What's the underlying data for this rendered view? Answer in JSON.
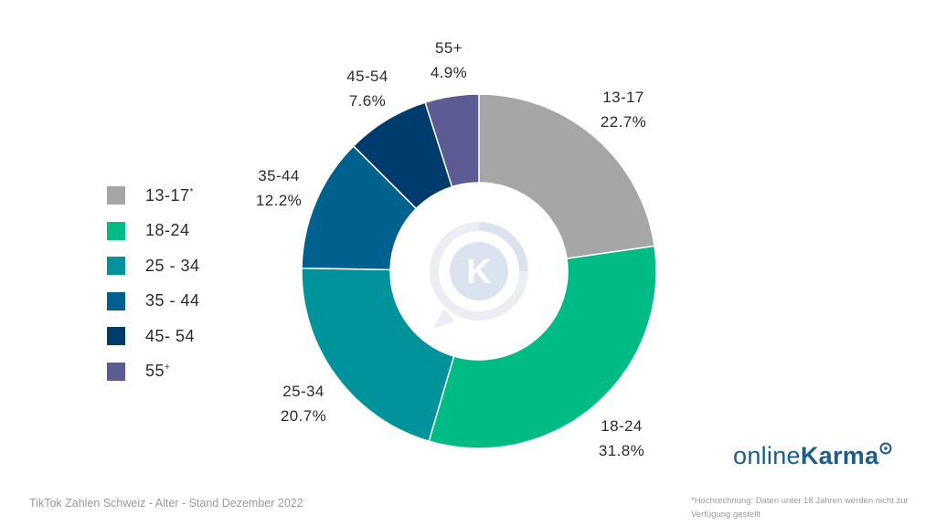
{
  "chart_data": {
    "type": "pie",
    "title": "",
    "categories": [
      "13-17",
      "18-24",
      "25-34",
      "35-44",
      "45-54",
      "55+"
    ],
    "values": [
      22.7,
      31.8,
      20.7,
      12.2,
      7.6,
      4.9
    ],
    "value_labels": [
      "22.7%",
      "31.8%",
      "20.7%",
      "12.2%",
      "7.6%",
      "4.9%"
    ],
    "colors": [
      "#a6a6a6",
      "#00bb83",
      "#00939b",
      "#00618f",
      "#003b6d",
      "#5c5b93"
    ],
    "donut": true,
    "center_icon": "onlinekarma-k-speech-bubble-icon",
    "legend": {
      "position": "left",
      "entries": [
        "13-17",
        "18-24",
        "25 - 34",
        "35 - 44",
        "45- 54",
        "55"
      ],
      "entry_marks": [
        "*",
        "",
        "",
        "",
        "",
        "+"
      ]
    }
  },
  "footer": {
    "title": "TikTok Zahlen Schweiz - Alter - Stand Dezember 2022",
    "footnote": "*Hochrechnung: Daten unter 18 Jahren werden nicht zur Verfügung gestellt"
  },
  "logo": {
    "text_light": "online",
    "text_bold": "Karma",
    "icon": "karma-circle-icon"
  }
}
